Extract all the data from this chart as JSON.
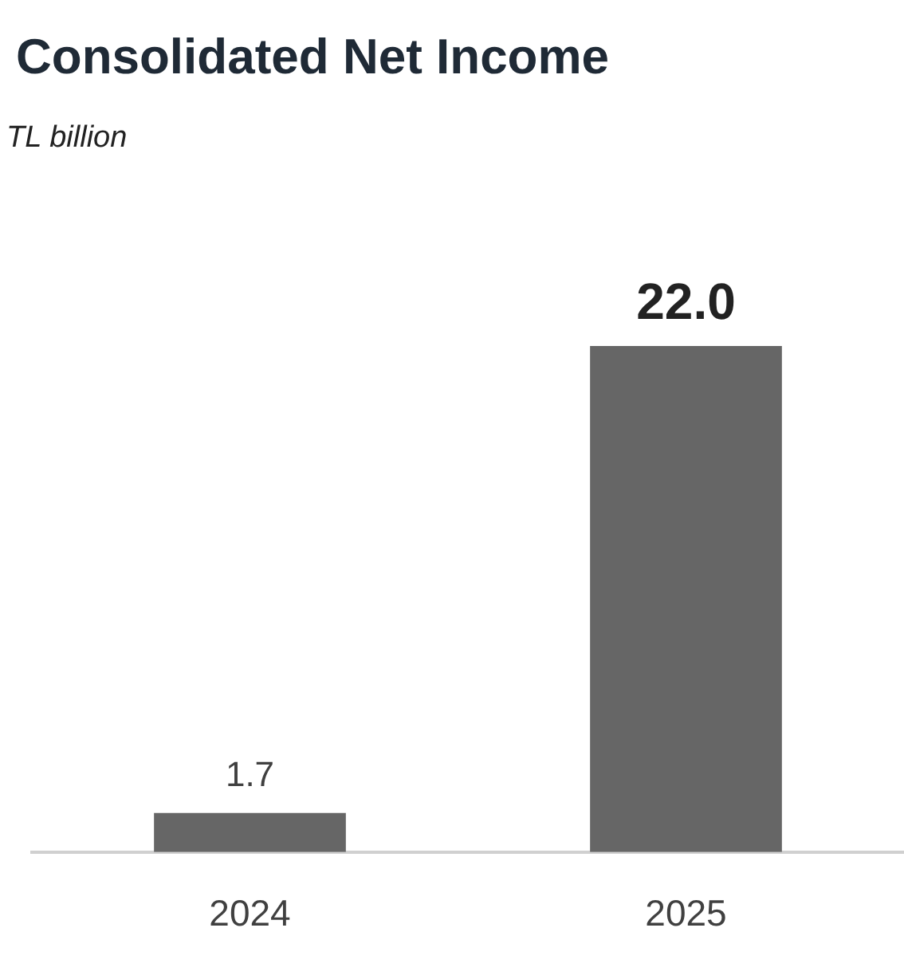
{
  "chart_data": {
    "type": "bar",
    "title": "Consolidated Net Income",
    "subtitle": "TL billion",
    "categories": [
      "2024",
      "2025"
    ],
    "values": [
      1.7,
      22.0
    ],
    "value_labels": [
      "1.7",
      "22.0"
    ],
    "color": "#666666",
    "tick_labels": "x",
    "grid": false,
    "legend": false
  }
}
